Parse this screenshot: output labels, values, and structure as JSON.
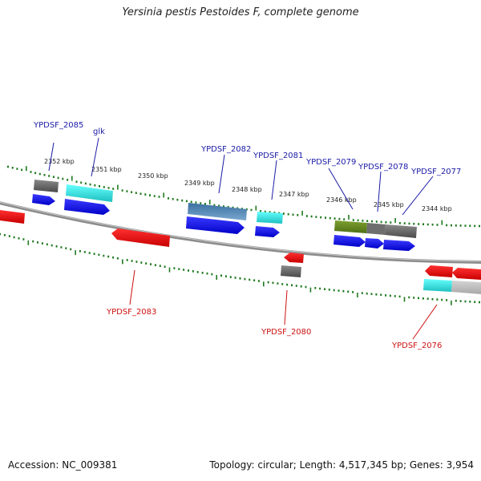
{
  "title": "Yersinia pestis Pestoides F, complete genome",
  "footer": {
    "accession": "Accession: NC_009381",
    "summary": "Topology: circular; Length: 4,517,345 bp; Genes: 3,954"
  },
  "scale_labels": [
    "2352 kbp",
    "2351 kbp",
    "2350 kbp",
    "2349 kbp",
    "2348 kbp",
    "2347 kbp",
    "2346 kbp",
    "2345 kbp",
    "2344 kbp"
  ],
  "gene_labels": {
    "forward": [
      "YPDSF_2085",
      "glk",
      "YPDSF_2082",
      "YPDSF_2081",
      "YPDSF_2079",
      "YPDSF_2078",
      "YPDSF_2077"
    ],
    "reverse": [
      "YPDSF_2083",
      "YPDSF_2080",
      "YPDSF_2076"
    ]
  },
  "colors": {
    "forward_cds": "#0000e0",
    "reverse_cds": "#e00000",
    "label_forward": "#1a1aa6",
    "label_reverse": "#cc1111",
    "tick": "#1f7a1f",
    "backbone": "#8c8c8c",
    "cog_gray": "#6e6e6e",
    "cog_cyan": "#33d6d6",
    "cog_steel": "#3f7fb3",
    "cog_olive": "#6b8f22",
    "cog_light_gray": "#bdbdbd"
  }
}
